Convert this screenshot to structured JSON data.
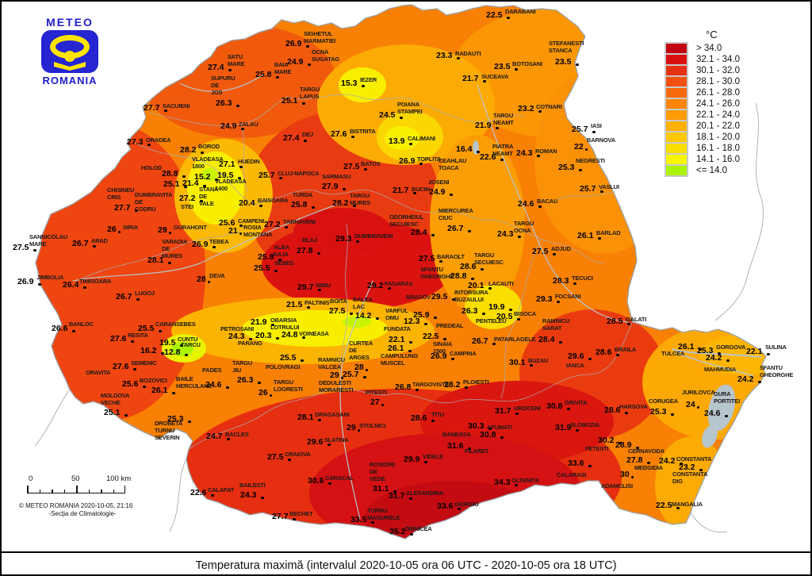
{
  "logo": {
    "line1": "METEO",
    "line2": "ROMANIA"
  },
  "legend": {
    "title": "°C",
    "items": [
      {
        "label": "> 34.0",
        "color": "#c20511"
      },
      {
        "label": "32.1 - 34.0",
        "color": "#da0f10"
      },
      {
        "label": "30.1 - 32.0",
        "color": "#e73113"
      },
      {
        "label": "28.1 - 30.0",
        "color": "#f25010"
      },
      {
        "label": "26.1 - 28.0",
        "color": "#f8690b"
      },
      {
        "label": "24.1 - 26.0",
        "color": "#fc8507"
      },
      {
        "label": "22.1 - 24.0",
        "color": "#fd9b04"
      },
      {
        "label": "20.1 - 22.0",
        "color": "#feb103"
      },
      {
        "label": "18.1 - 20.0",
        "color": "#fdc801"
      },
      {
        "label": "16.1 - 18.0",
        "color": "#f8df00"
      },
      {
        "label": "14.1 - 16.0",
        "color": "#f6f600"
      },
      {
        "label": "<= 14.0",
        "color": "#aaf400"
      }
    ]
  },
  "scalebar": {
    "label0": "0",
    "label50": "50",
    "label100": "100 km"
  },
  "copyright": {
    "line1": "© METEO ROMANIA 2020-10-05, 21:16",
    "line2": "-Secţia de Climatologie-"
  },
  "caption": "Temperatura maximă (intervalul 2020-10-05 ora 06 UTC - 2020-10-05 ora 18 UTC)",
  "stations": [
    [
      "26.9",
      358,
      48,
      "SIGHETUL|MARMATIEI",
      381,
      36
    ],
    [
      "24.9",
      360,
      71,
      "OCNA|SUGATAG",
      391,
      59
    ],
    [
      "27.4",
      260,
      78,
      "SATU|MARE",
      285,
      65
    ],
    [
      "25.8",
      320,
      87,
      "BAIA|MARE",
      344,
      75
    ],
    [
      "26.3",
      270,
      123,
      "SUPURU|DE|JOS",
      264,
      92
    ],
    [
      "25.1",
      353,
      120,
      "TARGU|LAPUS",
      376,
      106
    ],
    [
      "27.7",
      179,
      129,
      "SACUIENI",
      203,
      127
    ],
    [
      "24.9",
      276,
      152,
      "ZALAU",
      299,
      150
    ],
    [
      "15.3",
      428,
      98,
      "IEZER",
      452,
      94
    ],
    [
      "27.3",
      158,
      172,
      "ORADEA",
      182,
      170
    ],
    [
      "28.2",
      225,
      182,
      "BOROD",
      248,
      178
    ],
    [
      "22.5",
      611,
      12,
      "DARABANI",
      635,
      8
    ],
    [
      "23.3",
      548,
      63,
      "RADAUTI",
      572,
      61
    ],
    [
      "23.5",
      621,
      77,
      "BOTOSANI",
      644,
      74
    ],
    [
      "21.7",
      581,
      92,
      "SUCEAVA",
      605,
      90
    ],
    [
      "23.5",
      698,
      71,
      "STEFANESTI|STANCA",
      690,
      48
    ],
    [
      "23.2",
      651,
      130,
      "COTNARI",
      674,
      128
    ],
    [
      "24.5",
      476,
      138,
      "POIANA|STAMPEI",
      499,
      125
    ],
    [
      "25.7",
      719,
      156,
      "IASI",
      743,
      152
    ],
    [
      "22",
      722,
      178,
      "BARNOVA",
      738,
      170
    ],
    [
      "21.9",
      597,
      151,
      "TARGU|NEAMT",
      620,
      139
    ],
    [
      "22.6",
      603,
      191,
      "PIATRA|NEAMT",
      619,
      178
    ],
    [
      "24.3",
      649,
      186,
      "ROMAN",
      673,
      184
    ],
    [
      "25.3",
      702,
      204,
      "NEGRESTI",
      724,
      196
    ],
    [
      "25.7",
      729,
      231,
      "VASLUI",
      753,
      229
    ],
    [
      "24.6",
      651,
      250,
      "BACAU",
      675,
      247
    ],
    [
      "24.3",
      625,
      288,
      "TARGU|OCNA",
      646,
      275
    ],
    [
      "26.1",
      726,
      290,
      "BARLAD",
      750,
      287
    ],
    [
      "27.4",
      355,
      167,
      "DEJ",
      379,
      163
    ],
    [
      "27.6",
      415,
      162,
      "BISTRITA",
      439,
      159
    ],
    [
      "13.9",
      488,
      171,
      "CALIMANI",
      512,
      168
    ],
    [
      "27.1",
      274,
      200,
      "HUEDIN",
      298,
      197
    ],
    [
      "15.2",
      243,
      216,
      "VLADEASA|1800",
      240,
      194
    ],
    [
      "19.5",
      272,
      214,
      "VLADEASA|1400",
      269,
      222
    ],
    [
      "21.4",
      228,
      224,
      "STANA|DE|VALE",
      249,
      232
    ],
    [
      "28.8",
      202,
      212,
      "HOLOD",
      176,
      205
    ],
    [
      "25.1",
      204,
      225,
      "DUMBRAVITA|DE|CODRU",
      168,
      239
    ],
    [
      "27.7",
      142,
      255,
      "CHISINEU|CRIS",
      133,
      233
    ],
    [
      "27.2",
      224,
      243,
      "STEI",
      226,
      254
    ],
    [
      "25.7",
      324,
      214,
      "CLUJ-NAPOCA",
      348,
      212
    ],
    [
      "27.9",
      404,
      228,
      "SARMASU",
      404,
      216
    ],
    [
      "25.8",
      365,
      251,
      "TURDA",
      367,
      239
    ],
    [
      "20.4",
      299,
      249,
      "BAISOARA",
      323,
      246
    ],
    [
      "27.5",
      431,
      203,
      "BATOS",
      453,
      200
    ],
    [
      "26.9",
      501,
      196,
      "TOPLITA",
      524,
      194
    ],
    [
      "16.4",
      573,
      181,
      "CEAHLAU|TOACA",
      551,
      196
    ],
    [
      "24.9",
      539,
      235,
      "JOSENI",
      538,
      223
    ],
    [
      "21.7",
      493,
      233,
      "BUCIN",
      517,
      232
    ],
    [
      "28.2",
      417,
      249,
      "TARGU|MURES",
      439,
      240
    ],
    [
      "26",
      133,
      282,
      "SIRIA",
      153,
      280
    ],
    [
      "29",
      197,
      283,
      "GURAHONT",
      217,
      280
    ],
    [
      "26.9",
      240,
      301,
      "TEBEA",
      262,
      298
    ],
    [
      "28.1",
      184,
      321,
      "VARADIA|DE|MURES",
      202,
      298
    ],
    [
      "25.6",
      274,
      274,
      "CAMPENI",
      298,
      272
    ],
    [
      "21",
      286,
      284,
      "ROSIA|MONTANA",
      305,
      280
    ],
    [
      "27.2",
      331,
      276,
      "TARNAVENI",
      355,
      273
    ],
    [
      "27.8",
      372,
      309,
      "BLAJ",
      379,
      296
    ],
    [
      "29.3",
      421,
      294,
      "DUMBRAVENI",
      445,
      291
    ],
    [
      "28.4",
      516,
      286,
      "ODORHEIUL|SECUIESC",
      489,
      267
    ],
    [
      "26.7",
      562,
      281,
      "MIERCUREA|CIUC",
      551,
      259
    ],
    [
      "25.8",
      323,
      317,
      "ALBA|IULIA",
      343,
      305
    ],
    [
      "25.5",
      318,
      331,
      "SEBES",
      344,
      325
    ],
    [
      "27.5",
      526,
      319,
      "BARAOLT",
      549,
      317
    ],
    [
      "28.6",
      578,
      329,
      "TARGU|SECUIESC",
      596,
      315
    ],
    [
      "28.8",
      566,
      341,
      "SFANTU|GHEORGHE",
      528,
      333
    ],
    [
      "29.2",
      461,
      353,
      "FAGARAS",
      483,
      351
    ],
    [
      "29.7",
      373,
      355,
      "SIBIU",
      396,
      353
    ],
    [
      "29.5",
      542,
      367,
      "BRASOV",
      510,
      368
    ],
    [
      "21.5",
      359,
      377,
      "PALTINIS",
      382,
      375
    ],
    [
      "27.5",
      413,
      385,
      "BOITA",
      414,
      373
    ],
    [
      "14.2",
      446,
      391,
      "BALEA|LAC",
      443,
      371
    ],
    [
      "20.1",
      588,
      353,
      "LACAUTI",
      614,
      351
    ],
    [
      "26.3",
      580,
      385,
      "INTORSURA|BUZAULUI",
      571,
      362
    ],
    [
      "19.9",
      614,
      380,
      "PENTELEU",
      598,
      398
    ],
    [
      "20.5",
      624,
      392,
      "BISOCA",
      646,
      389
    ],
    [
      "12.3",
      507,
      398,
      "VARFUL|OMU",
      484,
      385
    ],
    [
      "25.9",
      519,
      390,
      "PREDEAL",
      548,
      404
    ],
    [
      "22.5",
      531,
      417,
      "SINAIA|1500",
      544,
      427
    ],
    [
      "22.1",
      488,
      421,
      "FUNDATA",
      482,
      408
    ],
    [
      "26.1",
      487,
      432,
      "CAMPULUNG|MUSCEL",
      478,
      442
    ],
    [
      "26.9",
      541,
      442,
      "CAMPINA",
      565,
      439
    ],
    [
      "27.5",
      669,
      310,
      "ADJUD",
      693,
      307
    ],
    [
      "28.3",
      695,
      347,
      "TECUCI",
      719,
      344
    ],
    [
      "29.3",
      674,
      370,
      "FOCSANI",
      698,
      367
    ],
    [
      "28.4",
      677,
      421,
      "RAMNICU|SARAT",
      682,
      398
    ],
    [
      "28.5",
      763,
      398,
      "GALATI",
      787,
      396
    ],
    [
      "28.6",
      749,
      437,
      "BRAILA",
      773,
      434
    ],
    [
      "26.7",
      593,
      423,
      "PATARLAGELE",
      621,
      421
    ],
    [
      "30.1",
      640,
      450,
      "BUZAU",
      664,
      448
    ],
    [
      "29.6",
      714,
      442,
      "IANCA",
      712,
      454
    ],
    [
      "31.7",
      622,
      511,
      "URZICENI",
      646,
      508
    ],
    [
      "30.8",
      687,
      505,
      "GRIVITA",
      710,
      501
    ],
    [
      "31.9",
      698,
      532,
      "SLOBOZIA",
      717,
      529
    ],
    [
      "28.6",
      760,
      510,
      "HARSOVA",
      779,
      506
    ],
    [
      "26.1",
      853,
      430,
      "TULCEA",
      832,
      439
    ],
    [
      "25.3",
      877,
      435,
      "GORGOVA",
      901,
      431
    ],
    [
      "24.2",
      888,
      444,
      "MAHMUDIA",
      886,
      459
    ],
    [
      "22.1",
      939,
      436,
      "SULINA",
      963,
      431
    ],
    [
      "24.2",
      928,
      471,
      "SFANTU|GHEORGHE",
      956,
      457
    ],
    [
      "24",
      863,
      503,
      "JURILOVCA",
      858,
      488
    ],
    [
      "24.6",
      886,
      514,
      "GURA|PORTITEI",
      898,
      490
    ],
    [
      "25.3",
      818,
      512,
      "CORUGEA",
      816,
      499
    ],
    [
      "30.2",
      752,
      548,
      "FETESTI",
      736,
      559
    ],
    [
      "28.9",
      774,
      554,
      "CERNAVODA",
      790,
      562
    ],
    [
      "27.8",
      788,
      573,
      "MEDGIDIA",
      798,
      583
    ],
    [
      "24.2",
      829,
      574,
      "CONSTANTA",
      851,
      572
    ],
    [
      "23.2",
      854,
      582,
      "CONSTANTA|DIG",
      846,
      591
    ],
    [
      "30",
      780,
      591,
      "ADAMCLISI",
      756,
      606
    ],
    [
      "22.5",
      825,
      630,
      "MANGALIA",
      845,
      629
    ],
    [
      "30.3",
      588,
      530,
      "AFUMATI",
      612,
      532
    ],
    [
      "30.8",
      603,
      541,
      "BANEASA",
      556,
      541
    ],
    [
      "31.6",
      562,
      555,
      "FILARET",
      584,
      562
    ],
    [
      "29.9",
      507,
      572,
      "VIDELE",
      531,
      569
    ],
    [
      "28.6",
      516,
      520,
      "TITU",
      542,
      516
    ],
    [
      "26.8",
      496,
      481,
      "TARGOVISTE",
      518,
      478
    ],
    [
      "28.2",
      558,
      478,
      "PLOIESTI",
      582,
      475
    ],
    [
      "27",
      465,
      500,
      "PITESTI",
      459,
      488
    ],
    [
      "29",
      414,
      466,
      "RAMNICU|VALCEA",
      399,
      447
    ],
    [
      "25.7",
      430,
      465,
      "DEDULESTI|MORARESTI",
      400,
      476
    ],
    [
      "28",
      445,
      456,
      "CURTEA|DE|ARGES",
      438,
      426
    ],
    [
      "28.1",
      373,
      519,
      "DRAGASANI",
      395,
      516
    ],
    [
      "29",
      435,
      532,
      "STOLNICI",
      451,
      530
    ],
    [
      "29.6",
      385,
      550,
      "SLATINA",
      407,
      548
    ],
    [
      "27.5",
      335,
      569,
      "CRAIOVA",
      357,
      566
    ],
    [
      "30.6",
      386,
      599,
      "CARACAL",
      408,
      596
    ],
    [
      "22.6",
      238,
      614,
      "CALAFAT",
      260,
      611
    ],
    [
      "24.3",
      301,
      617,
      "BAILESTI",
      300,
      605
    ],
    [
      "27.7",
      341,
      644,
      "BECHET",
      363,
      641
    ],
    [
      "31.1",
      468,
      609,
      "ROSIORII|DE|VEDE",
      464,
      579
    ],
    [
      "31.7",
      488,
      618,
      "ALEXANDRIA",
      510,
      615
    ],
    [
      "33.5",
      440,
      648,
      "TURNU|MAGURELE",
      461,
      637
    ],
    [
      "35.2",
      489,
      663,
      "ZIMNICEA",
      508,
      660
    ],
    [
      "33.6",
      549,
      631,
      "GIURGIU",
      571,
      629
    ],
    [
      "34.3",
      621,
      601,
      "OLTENITA",
      643,
      599
    ],
    [
      "33.6",
      714,
      577,
      "CALARASI",
      700,
      592
    ],
    [
      "25.5",
      351,
      444,
      "POLOVRAGI",
      333,
      456
    ],
    [
      "26.3",
      297,
      472,
      "TARGU|JIU",
      291,
      451
    ],
    [
      "26",
      324,
      488,
      "TARGU|LOGRESTI",
      343,
      475
    ],
    [
      "24.3",
      286,
      417,
      "PETROSANI",
      276,
      408
    ],
    [
      "21.9",
      314,
      399,
      "OBARSIA|LOTRULUI",
      339,
      397
    ],
    [
      "20.3",
      320,
      416,
      "PARANG",
      298,
      426
    ],
    [
      "24.8",
      353,
      415,
      "VOINEASA",
      375,
      414
    ],
    [
      "25.5",
      172,
      407,
      "CARANSEBES",
      194,
      402
    ],
    [
      "19.5",
      199,
      425,
      "CUNTU",
      222,
      421
    ],
    [
      "12.8",
      205,
      437,
      "TARCU",
      226,
      428
    ],
    [
      "16.2",
      175,
      435,
      "SEMENIC",
      163,
      451
    ],
    [
      "27.6",
      137,
      420,
      "RESITA",
      159,
      416
    ],
    [
      "26.6",
      63,
      407,
      "BANLOC",
      85,
      402
    ],
    [
      "26.4",
      77,
      352,
      "TIMISOARA",
      98,
      348
    ],
    [
      "26.9",
      20,
      348,
      "JIMBOLIA",
      44,
      343
    ],
    [
      "27.5",
      14,
      305,
      "SANNICOLAU|MARE",
      35,
      292
    ],
    [
      "26.7",
      89,
      300,
      "ARAD",
      113,
      297
    ],
    [
      "28",
      246,
      345,
      "DEVA",
      262,
      341
    ],
    [
      "26.7",
      144,
      367,
      "LUGOJ",
      168,
      363
    ],
    [
      "27.6",
      140,
      455,
      "ORAVITA",
      106,
      463
    ],
    [
      "25.6",
      152,
      477,
      "BOZOVICI",
      174,
      473
    ],
    [
      "26.1",
      189,
      485,
      "BAILE|HERCULANE",
      220,
      471
    ],
    [
      "24.6",
      257,
      478,
      "PADES",
      253,
      460
    ],
    [
      "25.1",
      129,
      513,
      "MOLDOVA|VECHE",
      125,
      492
    ],
    [
      "25.3",
      209,
      521,
      "DROBETA|TURNU|SEVERIN",
      193,
      527
    ],
    [
      "24.7",
      258,
      543,
      "BACLES",
      282,
      541
    ]
  ]
}
